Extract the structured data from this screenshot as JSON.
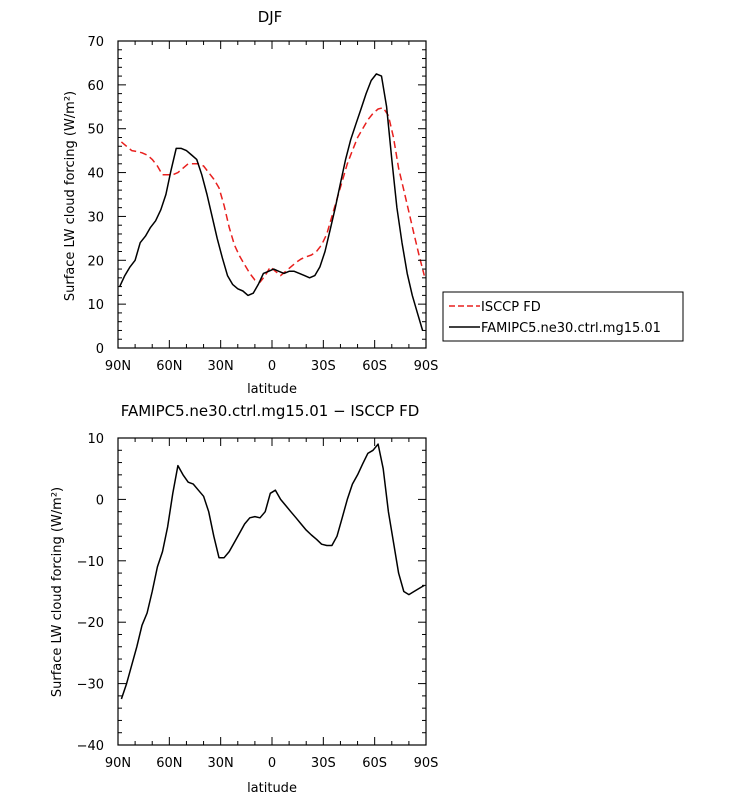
{
  "chart_data": [
    {
      "type": "line",
      "title": "DJF",
      "xlabel": "latitude",
      "ylabel": "Surface LW cloud forcing (W/m²)",
      "xlim": [
        90,
        -90
      ],
      "ylim": [
        0,
        70
      ],
      "x_ticks": [
        90,
        60,
        30,
        0,
        -30,
        -60,
        -90
      ],
      "x_tick_labels": [
        "90N",
        "60N",
        "30N",
        "0",
        "30S",
        "60S",
        "90S"
      ],
      "y_ticks": [
        0,
        10,
        20,
        30,
        40,
        50,
        60,
        70
      ],
      "y_tick_labels": [
        "0",
        "10",
        "20",
        "30",
        "40",
        "50",
        "60",
        "70"
      ],
      "legend": {
        "placement": "right"
      },
      "series": [
        {
          "name": "ISCCP FD",
          "color": "#e8201e",
          "dash": "dashed",
          "x": [
            88,
            85,
            82,
            79,
            76,
            73,
            70,
            67,
            64,
            61,
            58,
            55,
            52,
            49,
            46,
            43,
            40,
            37,
            34,
            31,
            28,
            25,
            22,
            19,
            16,
            13,
            10,
            7,
            4,
            1,
            -2,
            -5,
            -8,
            -11,
            -14,
            -17,
            -20,
            -23,
            -26,
            -29,
            -32,
            -35,
            -38,
            -41,
            -44,
            -47,
            -50,
            -53,
            -56,
            -59,
            -62,
            -65,
            -68,
            -71,
            -74,
            -77,
            -80,
            -83,
            -86,
            -89
          ],
          "y": [
            47,
            46,
            45,
            44.8,
            44.5,
            44,
            43,
            41.5,
            39.5,
            39.5,
            39.5,
            40,
            41,
            42,
            42,
            42,
            41.5,
            40,
            38.5,
            36.5,
            32.5,
            27.5,
            23.5,
            21,
            19,
            17,
            15.5,
            15,
            16.5,
            18.5,
            17.5,
            16.5,
            17.5,
            18.5,
            19.5,
            20.3,
            20.8,
            21.2,
            22,
            23.5,
            26,
            30,
            34,
            38,
            42,
            45,
            48,
            50,
            52,
            53.5,
            54.5,
            54.8,
            53,
            48,
            41,
            36,
            31,
            26,
            21,
            16.5
          ]
        },
        {
          "name": "FAMIPC5.ne30.ctrl.mg15.01",
          "color": "#000000",
          "dash": "solid",
          "x": [
            89,
            86,
            83,
            80,
            77,
            74,
            71,
            68,
            65,
            62,
            59,
            56,
            53,
            50,
            47,
            44,
            41,
            38,
            35,
            32,
            29,
            26,
            23,
            20,
            17,
            14,
            11,
            8,
            5,
            2,
            -1,
            -4,
            -7,
            -10,
            -13,
            -16,
            -19,
            -22,
            -25,
            -28,
            -31,
            -34,
            -37,
            -40,
            -43,
            -46,
            -49,
            -52,
            -55,
            -58,
            -61,
            -64,
            -67,
            -70,
            -73,
            -76,
            -79,
            -82,
            -85,
            -88
          ],
          "y": [
            14,
            16.5,
            18.5,
            20,
            24,
            25.5,
            27.5,
            29,
            31.5,
            35,
            40.5,
            45.5,
            45.5,
            45,
            44,
            43,
            39.5,
            35,
            30,
            25,
            20.5,
            16.5,
            14.5,
            13.5,
            13,
            12,
            12.5,
            14.5,
            17,
            17.5,
            18,
            17.5,
            17,
            17.5,
            17.5,
            17,
            16.5,
            16,
            16.5,
            18.5,
            22,
            27,
            32,
            37.5,
            43,
            47.5,
            51,
            54.5,
            58,
            61,
            62.5,
            62,
            55,
            43,
            32,
            24,
            17,
            12,
            8,
            4
          ]
        }
      ]
    },
    {
      "type": "line",
      "title": "FAMIPC5.ne30.ctrl.mg15.01 − ISCCP FD",
      "xlabel": "latitude",
      "ylabel": "Surface LW cloud forcing (W/m²)",
      "xlim": [
        90,
        -90
      ],
      "ylim": [
        -40,
        10
      ],
      "x_ticks": [
        90,
        60,
        30,
        0,
        -30,
        -60,
        -90
      ],
      "x_tick_labels": [
        "90N",
        "60N",
        "30N",
        "0",
        "30S",
        "60S",
        "90S"
      ],
      "y_ticks": [
        -40,
        -30,
        -20,
        -10,
        0,
        10
      ],
      "y_tick_labels": [
        "−40",
        "−30",
        "−20",
        "−10",
        "0",
        "10"
      ],
      "series": [
        {
          "color": "#000000",
          "dash": "solid",
          "x": [
            88,
            85,
            82,
            79,
            76,
            73,
            70,
            67,
            64,
            61,
            58,
            55,
            52,
            49,
            46,
            43,
            40,
            37,
            34,
            31,
            28,
            25,
            22,
            19,
            16,
            13,
            10,
            7,
            4,
            1,
            -2,
            -5,
            -8,
            -11,
            -14,
            -17,
            -20,
            -23,
            -26,
            -29,
            -32,
            -35,
            -38,
            -41,
            -44,
            -47,
            -50,
            -53,
            -56,
            -59,
            -62,
            -65,
            -68,
            -71,
            -74,
            -77,
            -80,
            -83,
            -86,
            -89
          ],
          "y": [
            -32.5,
            -30,
            -27,
            -24,
            -20.5,
            -18.5,
            -15,
            -11,
            -8.5,
            -4.5,
            1,
            5.5,
            4,
            2.8,
            2.5,
            1.5,
            0.5,
            -2,
            -6,
            -9.5,
            -9.5,
            -8.5,
            -7,
            -5.5,
            -4,
            -3,
            -2.8,
            -3,
            -2,
            1,
            1.5,
            0,
            -1,
            -2,
            -3,
            -4,
            -5,
            -5.8,
            -6.5,
            -7.3,
            -7.5,
            -7.5,
            -6,
            -3,
            0,
            2.5,
            4,
            5.8,
            7.5,
            8,
            9,
            5,
            -2,
            -7,
            -12,
            -15,
            -15.5,
            -15,
            -14.5,
            -14
          ]
        }
      ]
    }
  ]
}
